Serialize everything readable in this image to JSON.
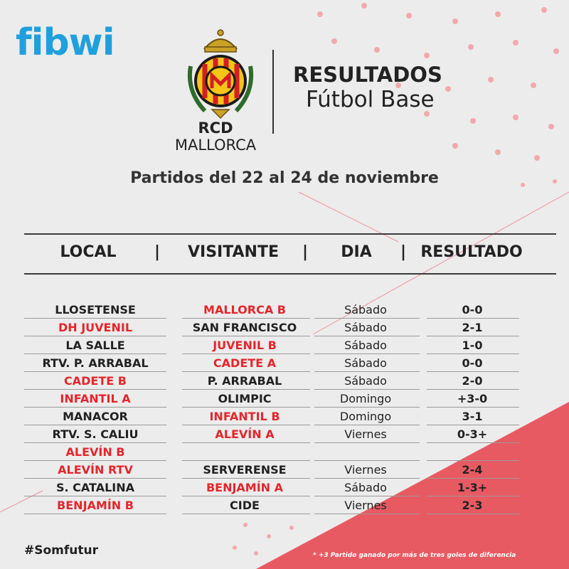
{
  "brand": {
    "sponsor_logo": "fibwi",
    "club_name_bold": "RCD",
    "club_name_rest": " MALLORCA"
  },
  "header": {
    "title": "RESULTADOS",
    "subtitle": "Fútbol Base"
  },
  "period": "Partidos del 22 al 24 de noviembre",
  "table": {
    "columns": [
      "LOCAL",
      "VISITANTE",
      "DIA",
      "RESULTADO"
    ],
    "separator": "|",
    "rows": [
      {
        "local": "LLOSETENSE",
        "local_team": false,
        "visitante": "MALLORCA B",
        "visitante_team": true,
        "dia": "Sábado",
        "resultado": "0-0"
      },
      {
        "local": "DH JUVENIL",
        "local_team": true,
        "visitante": "SAN FRANCISCO",
        "visitante_team": false,
        "dia": "Sábado",
        "resultado": "2-1"
      },
      {
        "local": "LA SALLE",
        "local_team": false,
        "visitante": "JUVENIL B",
        "visitante_team": true,
        "dia": "Sábado",
        "resultado": "1-0"
      },
      {
        "local": "RTV. P. ARRABAL",
        "local_team": false,
        "visitante": "CADETE A",
        "visitante_team": true,
        "dia": "Sábado",
        "resultado": "0-0"
      },
      {
        "local": "CADETE B",
        "local_team": true,
        "visitante": "P. ARRABAL",
        "visitante_team": false,
        "dia": "Sábado",
        "resultado": "2-0"
      },
      {
        "local": "INFANTIL A",
        "local_team": true,
        "visitante": "OLIMPIC",
        "visitante_team": false,
        "dia": "Domingo",
        "resultado": "+3-0"
      },
      {
        "local": "MANACOR",
        "local_team": false,
        "visitante": "INFANTIL B",
        "visitante_team": true,
        "dia": "Domingo",
        "resultado": "3-1"
      },
      {
        "local": "RTV. S. CALIU",
        "local_team": false,
        "visitante": "ALEVÍN A",
        "visitante_team": true,
        "dia": "Viernes",
        "resultado": "0-3+"
      },
      {
        "local": "ALEVÍN B",
        "local_team": true,
        "visitante": "",
        "visitante_team": false,
        "dia": "",
        "resultado": ""
      },
      {
        "local": "ALEVÍN RTV",
        "local_team": true,
        "visitante": "SERVERENSE",
        "visitante_team": false,
        "dia": "Viernes",
        "resultado": "2-4"
      },
      {
        "local": "S. CATALINA",
        "local_team": false,
        "visitante": "BENJAMÍN A",
        "visitante_team": true,
        "dia": "Sábado",
        "resultado": "1-3+"
      },
      {
        "local": "BENJAMÍN B",
        "local_team": true,
        "visitante": "CIDE",
        "visitante_team": false,
        "dia": "Viernes",
        "resultado": "2-3"
      }
    ]
  },
  "footer": {
    "hashtag": "#Somfutur",
    "note": "* +3 Partido ganado por más de tres goles de diferencia"
  },
  "colors": {
    "accent_red": "#e3262c",
    "sponsor_blue": "#1fa0dd",
    "triangle_red": "#e85a62",
    "background": "#ececec"
  }
}
